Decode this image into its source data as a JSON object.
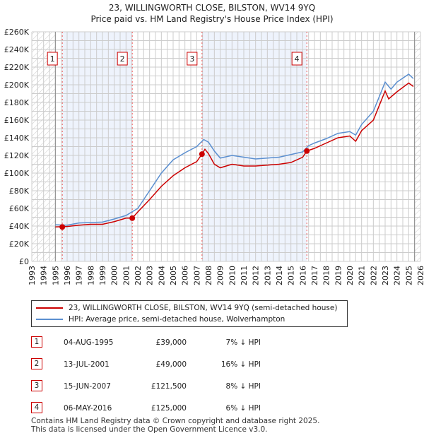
{
  "chart_data": {
    "type": "line",
    "title": "23, WILLINGWORTH CLOSE, BILSTON, WV14 9YQ",
    "subtitle": "Price paid vs. HM Land Registry's House Price Index (HPI)",
    "xlim": [
      1993,
      2026
    ],
    "ylim": [
      0,
      260000
    ],
    "x_ticks": [
      "1993",
      "1994",
      "1995",
      "1996",
      "1997",
      "1998",
      "1999",
      "2000",
      "2001",
      "2002",
      "2003",
      "2004",
      "2005",
      "2006",
      "2007",
      "2008",
      "2009",
      "2010",
      "2011",
      "2012",
      "2013",
      "2014",
      "2015",
      "2016",
      "2017",
      "2018",
      "2019",
      "2020",
      "2021",
      "2022",
      "2023",
      "2024",
      "2025",
      "2026"
    ],
    "y_ticks": [
      "£0",
      "£20K",
      "£40K",
      "£60K",
      "£80K",
      "£100K",
      "£120K",
      "£140K",
      "£160K",
      "£180K",
      "£200K",
      "£220K",
      "£240K",
      "£260K"
    ],
    "series": [
      {
        "name": "23, WILLINGWORTH CLOSE, BILSTON, WV14 9YQ (semi-detached house)",
        "color": "#cc0000",
        "x": [
          1995,
          1996,
          1997,
          1998,
          1999,
          2000,
          2001,
          2001.53,
          2002,
          2003,
          2004,
          2005,
          2006,
          2007,
          2007.45,
          2007.7,
          2008,
          2008.5,
          2009,
          2010,
          2011,
          2012,
          2013,
          2014,
          2015,
          2016,
          2016.35,
          2017,
          2018,
          2019,
          2020,
          2020.5,
          2021,
          2022,
          2023,
          2023.3,
          2024,
          2025,
          2025.4
        ],
        "y": [
          39000,
          39500,
          41000,
          42000,
          42000,
          45000,
          49000,
          49000,
          56000,
          70000,
          85000,
          97000,
          106000,
          113000,
          121500,
          127000,
          122000,
          110000,
          106000,
          110000,
          108000,
          108000,
          109000,
          110000,
          112000,
          118000,
          125000,
          128000,
          134000,
          140000,
          142000,
          136000,
          148000,
          160000,
          193000,
          184000,
          192000,
          202000,
          198000
        ]
      },
      {
        "name": "HPI: Average price, semi-detached house, Wolverhampton",
        "color": "#5b8fd0",
        "x": [
          1995,
          1996,
          1997,
          1998,
          1999,
          2000,
          2001,
          2002,
          2003,
          2004,
          2005,
          2006,
          2007,
          2007.6,
          2008,
          2008.5,
          2009,
          2010,
          2011,
          2012,
          2013,
          2014,
          2015,
          2016,
          2016.5,
          2017,
          2018,
          2019,
          2020,
          2020.5,
          2021,
          2022,
          2023,
          2023.5,
          2024,
          2025,
          2025.4
        ],
        "y": [
          41500,
          41000,
          43500,
          44000,
          44500,
          48000,
          52000,
          60000,
          80000,
          100000,
          115000,
          123000,
          130000,
          138000,
          135000,
          125000,
          117000,
          120000,
          118000,
          116000,
          117000,
          118000,
          121000,
          124000,
          131000,
          134000,
          139000,
          145000,
          147000,
          143000,
          155000,
          170000,
          203000,
          195000,
          203000,
          212000,
          207000
        ]
      }
    ],
    "sales": [
      {
        "n": "1",
        "date": "04-AUG-1995",
        "x": 1995.59,
        "price": "£39,000",
        "value": 39000,
        "hpi": "7% ↓ HPI"
      },
      {
        "n": "2",
        "date": "13-JUL-2001",
        "x": 2001.53,
        "price": "£49,000",
        "value": 49000,
        "hpi": "16% ↓ HPI"
      },
      {
        "n": "3",
        "date": "15-JUN-2007",
        "x": 2007.45,
        "price": "£121,500",
        "value": 121500,
        "hpi": "8% ↓ HPI"
      },
      {
        "n": "4",
        "date": "06-MAY-2016",
        "x": 2016.35,
        "price": "£125,000",
        "value": 125000,
        "hpi": "6% ↓ HPI"
      }
    ],
    "data_start": 1995,
    "data_end": 2025.5,
    "legend_placement": "below"
  },
  "footer": {
    "line1": "Contains HM Land Registry data © Crown copyright and database right 2025.",
    "line2": "This data is licensed under the Open Government Licence v3.0."
  }
}
